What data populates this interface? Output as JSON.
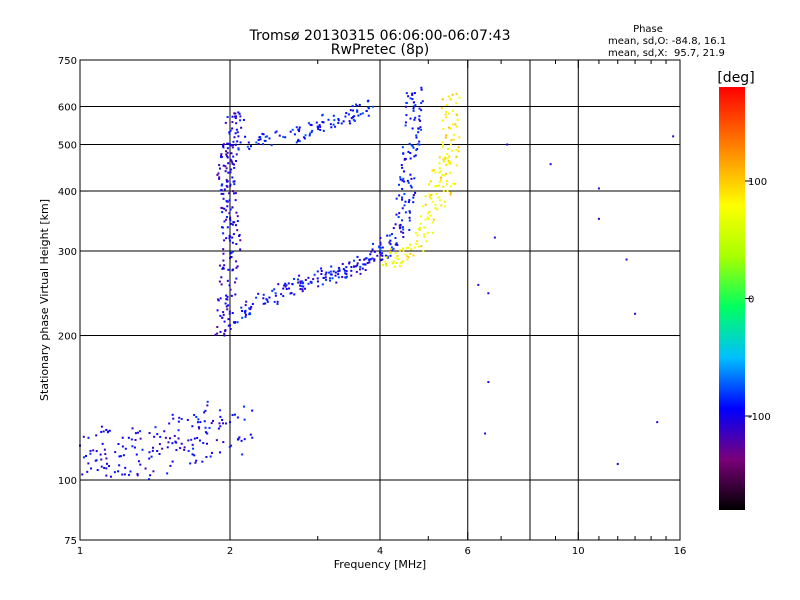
{
  "chart_data": {
    "type": "scatter",
    "title": "Tromsø 20130315 06:06:00-06:07:43",
    "subtitle": "RwPretec (8p)",
    "xlabel": "Frequency [MHz]",
    "ylabel": "Stationary phase Virtual Height [km]",
    "x_scale": "log",
    "y_scale": "log",
    "xlim": [
      1,
      16
    ],
    "ylim": [
      75,
      750
    ],
    "x_ticks": [
      1,
      2,
      4,
      6,
      10,
      16
    ],
    "y_ticks": [
      75,
      100,
      200,
      300,
      400,
      500,
      600,
      750
    ],
    "x_grid": [
      2,
      4,
      6,
      8,
      10
    ],
    "y_grid": [
      100,
      200,
      300,
      400,
      500,
      600
    ],
    "stats": {
      "heading": "Phase",
      "line_o": "mean, sd,O: -84.8, 16.1",
      "line_x": "mean, sd,X:  95.7, 21.9"
    },
    "colorbar": {
      "label": "[deg]",
      "min": -180,
      "max": 180,
      "ticks": [
        100,
        0,
        -100
      ]
    },
    "series": [
      {
        "trace": "o-low-band",
        "phase_deg": -100,
        "points": [
          [
            1.0,
            118
          ],
          [
            1.05,
            115
          ],
          [
            1.1,
            113
          ],
          [
            1.2,
            112
          ],
          [
            1.3,
            113
          ],
          [
            1.4,
            115
          ],
          [
            1.5,
            117
          ],
          [
            1.6,
            119
          ],
          [
            1.7,
            122
          ],
          [
            1.8,
            125
          ],
          [
            1.9,
            128
          ],
          [
            2.0,
            132
          ]
        ]
      },
      {
        "trace": "o-vertical-2mhz",
        "phase_deg": -105,
        "points": [
          [
            1.95,
            200
          ],
          [
            1.97,
            230
          ],
          [
            1.98,
            260
          ],
          [
            2.0,
            290
          ],
          [
            2.02,
            320
          ],
          [
            2.0,
            350
          ],
          [
            1.98,
            380
          ],
          [
            1.97,
            410
          ],
          [
            1.96,
            440
          ],
          [
            1.98,
            470
          ],
          [
            2.0,
            500
          ],
          [
            2.02,
            540
          ],
          [
            2.05,
            580
          ]
        ]
      },
      {
        "trace": "o-main",
        "phase_deg": -95,
        "points": [
          [
            2.0,
            210
          ],
          [
            2.2,
            228
          ],
          [
            2.4,
            240
          ],
          [
            2.6,
            250
          ],
          [
            2.8,
            257
          ],
          [
            3.0,
            263
          ],
          [
            3.2,
            268
          ],
          [
            3.4,
            273
          ],
          [
            3.6,
            280
          ],
          [
            3.8,
            288
          ],
          [
            4.0,
            298
          ],
          [
            4.2,
            310
          ],
          [
            4.4,
            340
          ],
          [
            4.5,
            380
          ],
          [
            4.55,
            420
          ],
          [
            4.6,
            480
          ],
          [
            4.65,
            540
          ],
          [
            4.68,
            600
          ],
          [
            4.7,
            640
          ]
        ]
      },
      {
        "trace": "o-upper-branch",
        "phase_deg": -90,
        "points": [
          [
            2.1,
            505
          ],
          [
            2.4,
            515
          ],
          [
            2.7,
            525
          ],
          [
            3.0,
            545
          ],
          [
            3.3,
            565
          ],
          [
            3.6,
            585
          ],
          [
            3.8,
            595
          ]
        ]
      },
      {
        "trace": "x-cusp",
        "phase_deg": 95,
        "points": [
          [
            4.1,
            285
          ],
          [
            4.3,
            290
          ],
          [
            4.5,
            295
          ],
          [
            4.7,
            305
          ],
          [
            4.9,
            325
          ],
          [
            5.0,
            350
          ],
          [
            5.1,
            380
          ],
          [
            5.2,
            410
          ],
          [
            5.3,
            440
          ],
          [
            5.4,
            470
          ]
        ]
      },
      {
        "trace": "x-vertical",
        "phase_deg": 100,
        "points": [
          [
            5.4,
            380
          ],
          [
            5.45,
            420
          ],
          [
            5.5,
            460
          ],
          [
            5.55,
            500
          ],
          [
            5.55,
            540
          ],
          [
            5.5,
            580
          ],
          [
            5.55,
            620
          ]
        ]
      },
      {
        "trace": "scattered",
        "phase_deg": -110,
        "points": [
          [
            6.3,
            255
          ],
          [
            6.6,
            245
          ],
          [
            6.6,
            160
          ],
          [
            6.5,
            125
          ],
          [
            6.8,
            320
          ],
          [
            7.2,
            500
          ],
          [
            8.8,
            455
          ],
          [
            11.0,
            405
          ],
          [
            11.0,
            350
          ],
          [
            12.5,
            288
          ],
          [
            13.0,
            222
          ],
          [
            12.0,
            108
          ],
          [
            14.4,
            132
          ],
          [
            15.5,
            520
          ]
        ]
      }
    ]
  }
}
